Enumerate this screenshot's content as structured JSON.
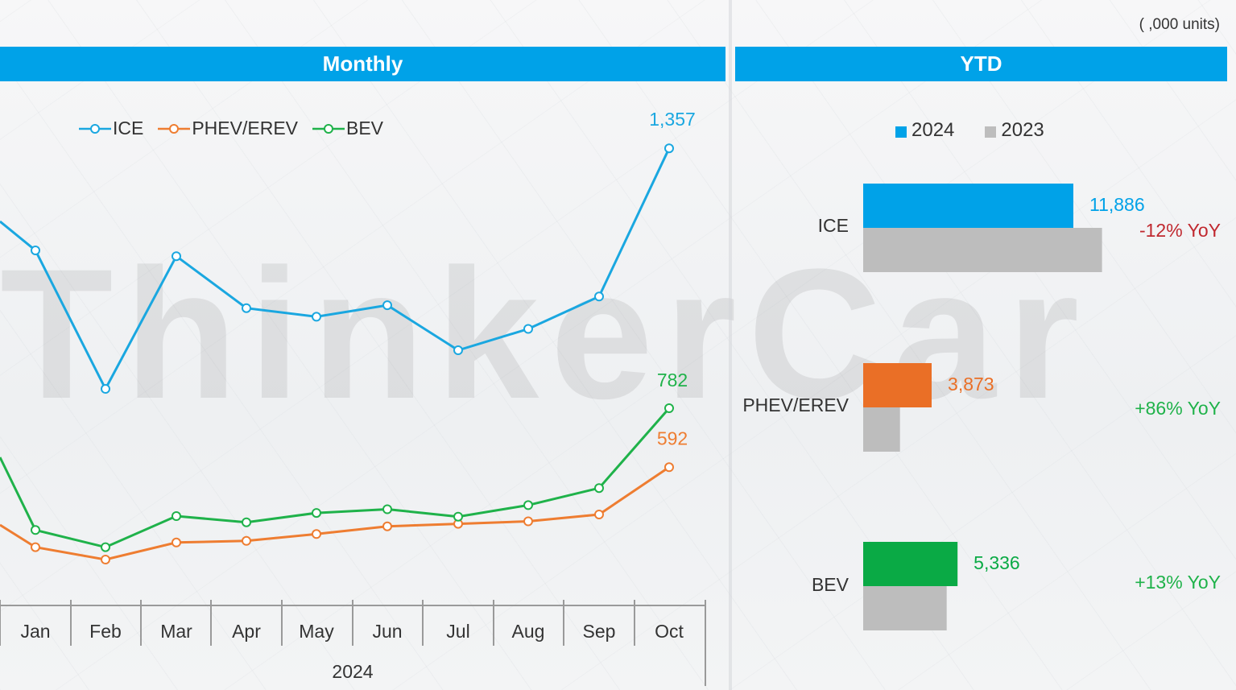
{
  "units_note": "( ,000 units)",
  "monthly": {
    "title": "Monthly"
  },
  "ytd": {
    "title": "YTD"
  },
  "colors": {
    "ICE": "#1aa7e0",
    "PHEV/EREV": "#ee7d31",
    "BEV": "#1fb24a",
    "y2024_ice": "#00a2e8",
    "y2024_phev": "#ea6f26",
    "y2024_bev": "#0aaa45",
    "y2023": "#bdbdbd",
    "neg": "#c0282f",
    "pos": "#1fb24a",
    "header": "#00a2e8"
  },
  "watermark": "ThinkerCar",
  "chart_data": [
    {
      "type": "line",
      "title": "Monthly",
      "categories": [
        "Jan",
        "Feb",
        "Mar",
        "Apr",
        "May",
        "Jun",
        "Jul",
        "Aug",
        "Sep",
        "Oct"
      ],
      "xlabel": "2024",
      "series": [
        {
          "name": "ICE",
          "values": [
            1180,
            940,
            1170,
            1080,
            1065,
            1085,
            1007,
            1044,
            1100,
            1357
          ],
          "end_label": "1,357"
        },
        {
          "name": "PHEV/EREV",
          "values": [
            335,
            295,
            350,
            355,
            377,
            402,
            410,
            418,
            440,
            592
          ],
          "end_label": "592"
        },
        {
          "name": "BEV",
          "values": [
            390,
            335,
            435,
            415,
            445,
            457,
            433,
            470,
            525,
            782
          ],
          "end_label": "782"
        }
      ],
      "legend": "top-left"
    },
    {
      "type": "bar",
      "title": "YTD",
      "orientation": "horizontal",
      "categories": [
        "ICE",
        "PHEV/EREV",
        "BEV"
      ],
      "series": [
        {
          "name": "2024",
          "values": [
            11886,
            3873,
            5336
          ],
          "labels": [
            "11,886",
            "3,873",
            "5,336"
          ]
        },
        {
          "name": "2023",
          "values": [
            13507,
            2082,
            4722
          ]
        }
      ],
      "annotations": [
        "-12% YoY",
        "+86% YoY",
        "+13% YoY"
      ],
      "legend": "top"
    }
  ]
}
